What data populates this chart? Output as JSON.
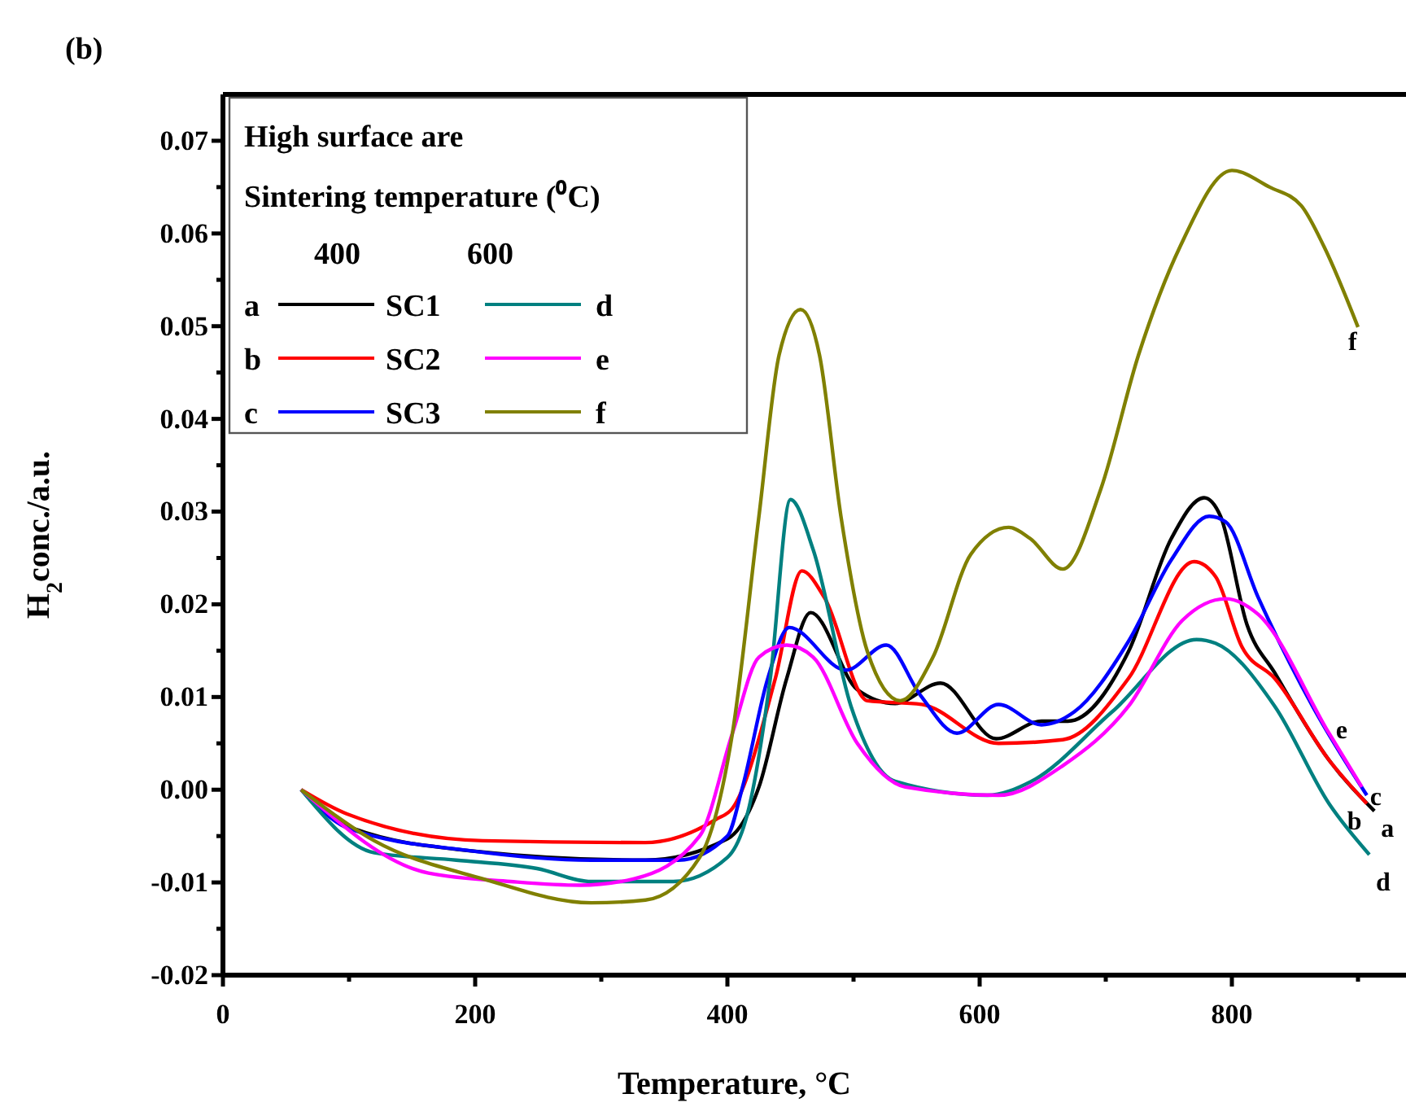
{
  "chart_data": {
    "type": "line",
    "title": "(b)",
    "xlabel": "Temperature, °C",
    "ylabel": "H$_{2}$conc./a.u.",
    "legend_title": "High surface are",
    "annotations": [
      "Sintering temperature (⁰C)",
      "400",
      "600",
      "SC1",
      "SC2",
      "SC3"
    ],
    "xlim": [
      0,
      940
    ],
    "xticks": [
      0,
      {
        "value": 100,
        "label": null
      },
      200,
      {
        "value": 300,
        "label": null
      },
      400,
      {
        "value": 500,
        "label": null
      },
      600,
      {
        "value": 700,
        "label": null
      },
      800,
      {
        "value": 900,
        "label": null
      }
    ],
    "ylim": [
      -0.02,
      0.075
    ],
    "yticks": [
      {
        "value": -0.02,
        "label": "-0.02"
      },
      {
        "value": -0.015,
        "label": null
      },
      {
        "value": -0.01,
        "label": "-0.01"
      },
      {
        "value": -0.005,
        "label": null
      },
      {
        "value": 0,
        "label": "0.00"
      },
      {
        "value": 0.005,
        "label": null
      },
      {
        "value": 0.01,
        "label": "0.01"
      },
      {
        "value": 0.015,
        "label": null
      },
      {
        "value": 0.02,
        "label": "0.02"
      },
      {
        "value": 0.025,
        "label": null
      },
      {
        "value": 0.03,
        "label": "0.03"
      },
      {
        "value": 0.035,
        "label": null
      },
      {
        "value": 0.04,
        "label": "0.04"
      },
      {
        "value": 0.045,
        "label": null
      },
      {
        "value": 0.05,
        "label": "0.05"
      },
      {
        "value": 0.055,
        "label": null
      },
      {
        "value": 0.06,
        "label": "0.06"
      },
      {
        "value": 0.065,
        "label": null
      },
      {
        "value": 0.07,
        "label": "0.07"
      }
    ],
    "grid": false,
    "legend": "top left",
    "line_style": "solid",
    "marker": "none",
    "series": [
      {
        "name": "a",
        "color": "#000000",
        "x": [
          62,
          100,
          197,
          335,
          400,
          425,
          447,
          466,
          503,
          533,
          569,
          613,
          649,
          670,
          718,
          752,
          778,
          791,
          812,
          834,
          877,
          913
        ],
        "values": [
          0,
          -0.004,
          -0.0066,
          -0.0076,
          -0.0053,
          0.0003,
          0.012,
          0.0191,
          0.0108,
          0.0093,
          0.0115,
          0.0055,
          0.0074,
          0.0074,
          0.0149,
          0.0271,
          0.0315,
          0.0295,
          0.0178,
          0.0126,
          0.0032,
          -0.0023
        ]
      },
      {
        "name": "b",
        "color": "#ff0000",
        "x": [
          62,
          98,
          206,
          335,
          391,
          404,
          438,
          459,
          477,
          511,
          554,
          615,
          666,
          718,
          770,
          787,
          808,
          834,
          877,
          907
        ],
        "values": [
          0,
          -0.0026,
          -0.0055,
          -0.0057,
          -0.0032,
          -0.002,
          0.012,
          0.0236,
          0.0207,
          0.0096,
          0.0092,
          0.005,
          0.0054,
          0.012,
          0.0246,
          0.023,
          0.0154,
          0.012,
          0.0032,
          -0.0015
        ]
      },
      {
        "name": "c",
        "color": "#0000ff",
        "x": [
          62,
          100,
          197,
          292,
          361,
          400,
          412,
          432,
          449,
          494,
          526,
          553,
          582,
          615,
          649,
          675,
          718,
          752,
          782,
          795,
          821,
          864,
          907
        ],
        "values": [
          0,
          -0.0042,
          -0.0066,
          -0.0076,
          -0.0076,
          -0.005,
          0.0003,
          0.012,
          0.0175,
          0.0129,
          0.0156,
          0.0102,
          0.0061,
          0.0092,
          0.007,
          0.0084,
          0.016,
          0.0248,
          0.0295,
          0.0289,
          0.0207,
          0.009,
          -0.0006
        ]
      },
      {
        "name": "d",
        "color": "#008080",
        "x": [
          62,
          120,
          185,
          249,
          292,
          357,
          400,
          417,
          434,
          450,
          468,
          498,
          533,
          606,
          641,
          705,
          772,
          787,
          834,
          877,
          909
        ],
        "values": [
          0,
          -0.0068,
          -0.0076,
          -0.0085,
          -0.0099,
          -0.0099,
          -0.0073,
          -0.002,
          0.012,
          0.0313,
          0.0259,
          0.009,
          0.0009,
          -0.0006,
          0.0009,
          0.0084,
          0.0162,
          0.0158,
          0.009,
          -0.0015,
          -0.007
        ]
      },
      {
        "name": "e",
        "color": "#ff00ff",
        "x": [
          62,
          163,
          228,
          283,
          326,
          378,
          404,
          425,
          447,
          468,
          503,
          541,
          615,
          666,
          718,
          761,
          795,
          821,
          877,
          903
        ],
        "values": [
          0,
          -0.009,
          -0.0099,
          -0.0103,
          -0.0096,
          -0.005,
          0.0061,
          0.0143,
          0.0156,
          0.0143,
          0.005,
          0.0003,
          -0.0006,
          0.0026,
          0.009,
          0.0183,
          0.0206,
          0.0189,
          0.0061,
          0.0003
        ]
      },
      {
        "name": "f",
        "color": "#808000",
        "x": [
          62,
          120,
          206,
          292,
          335,
          378,
          404,
          425,
          441,
          458,
          473,
          490,
          511,
          537,
          563,
          593,
          623,
          640,
          666,
          696,
          726,
          759,
          800,
          830,
          855,
          873,
          900
        ],
        "values": [
          0,
          -0.0055,
          -0.0096,
          -0.0122,
          -0.0119,
          -0.0073,
          0.0061,
          0.0295,
          0.0469,
          0.0518,
          0.0469,
          0.0295,
          0.0149,
          0.0096,
          0.0143,
          0.0254,
          0.0283,
          0.0271,
          0.0238,
          0.0324,
          0.0469,
          0.0586,
          0.0668,
          0.065,
          0.063,
          0.0586,
          0.0499
        ]
      }
    ]
  }
}
